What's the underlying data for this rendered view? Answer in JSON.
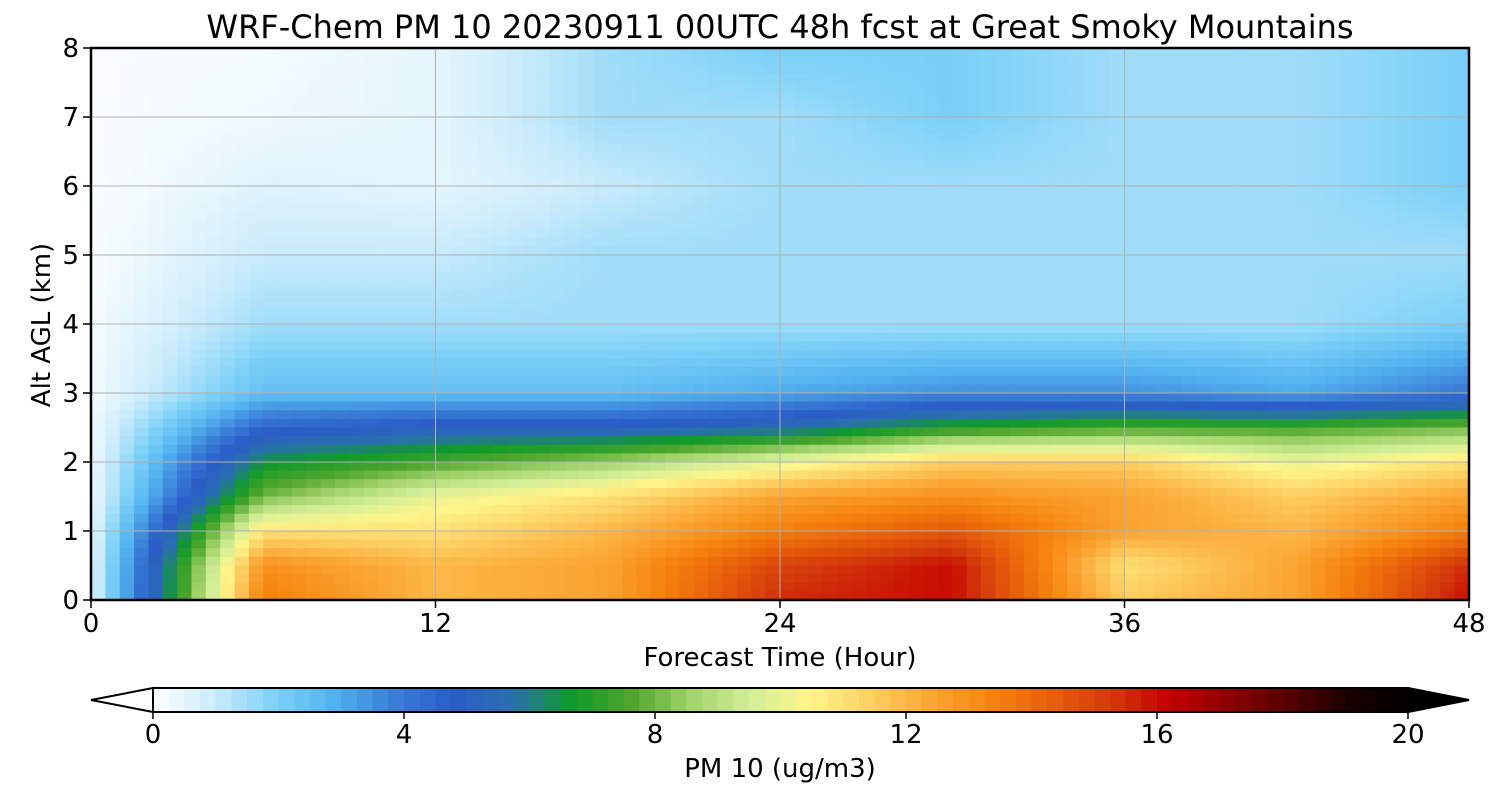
{
  "chart_data": {
    "type": "heatmap",
    "title": "WRF-Chem PM 10  20230911 00UTC 48h fcst at Great Smoky Mountains",
    "xlabel": "Forecast Time (Hour)",
    "ylabel": "Alt AGL (km)",
    "xlim": [
      0,
      48
    ],
    "ylim": [
      0,
      8
    ],
    "x_ticks": [
      0,
      12,
      24,
      36,
      48
    ],
    "y_ticks": [
      0,
      1,
      2,
      3,
      4,
      5,
      6,
      7,
      8
    ],
    "grid": true,
    "colorbar": {
      "label": "PM 10  (ug/m3)",
      "orientation": "horizontal",
      "placement": "bottom",
      "range": [
        0,
        20
      ],
      "ticks": [
        0,
        4,
        8,
        12,
        16,
        20
      ],
      "extend": "both",
      "colors": [
        "#ffffff",
        "#ccecfb",
        "#7fd2f8",
        "#52b3ef",
        "#3a7fd7",
        "#2b5cc8",
        "#2a6fb0",
        "#0f9a2a",
        "#4ea52d",
        "#a2d36a",
        "#d2ee98",
        "#fff58a",
        "#fdd063",
        "#fba735",
        "#f6840e",
        "#e8600a",
        "#d43b0b",
        "#c40000",
        "#8c0000",
        "#560000",
        "#1a0000",
        "#000000"
      ]
    },
    "x": [
      0,
      6,
      12,
      18,
      24,
      30,
      36,
      42,
      48
    ],
    "y": [
      0,
      0.5,
      1,
      1.5,
      2,
      2.5,
      3,
      4,
      5,
      6,
      7,
      8
    ],
    "z": [
      [
        0.5,
        13.5,
        12.0,
        12.5,
        15.5,
        16.0,
        11.5,
        12.5,
        16.0
      ],
      [
        0.5,
        13.0,
        12.0,
        12.5,
        15.0,
        16.0,
        11.0,
        12.5,
        15.5
      ],
      [
        0.4,
        11.0,
        11.0,
        12.0,
        13.5,
        14.5,
        12.5,
        12.0,
        13.5
      ],
      [
        0.3,
        8.0,
        10.0,
        11.0,
        12.5,
        13.0,
        12.5,
        11.5,
        12.5
      ],
      [
        0.3,
        6.5,
        7.5,
        8.5,
        10.0,
        11.5,
        11.5,
        10.0,
        11.0
      ],
      [
        0.3,
        4.5,
        5.0,
        5.0,
        5.5,
        7.0,
        7.5,
        7.5,
        8.0
      ],
      [
        0.2,
        2.5,
        2.5,
        2.5,
        3.0,
        3.5,
        3.5,
        3.0,
        4.0
      ],
      [
        0.2,
        1.5,
        1.5,
        1.5,
        1.5,
        1.5,
        1.5,
        1.5,
        2.0
      ],
      [
        0.1,
        1.0,
        1.0,
        1.5,
        1.5,
        1.5,
        1.5,
        1.5,
        1.5
      ],
      [
        0.1,
        0.6,
        0.5,
        1.0,
        1.5,
        1.5,
        1.5,
        1.5,
        2.0
      ],
      [
        0.1,
        0.3,
        0.5,
        1.5,
        1.5,
        2.0,
        1.5,
        1.5,
        2.0
      ],
      [
        0.1,
        0.2,
        0.5,
        1.5,
        2.0,
        2.0,
        1.5,
        1.5,
        2.0
      ]
    ]
  }
}
